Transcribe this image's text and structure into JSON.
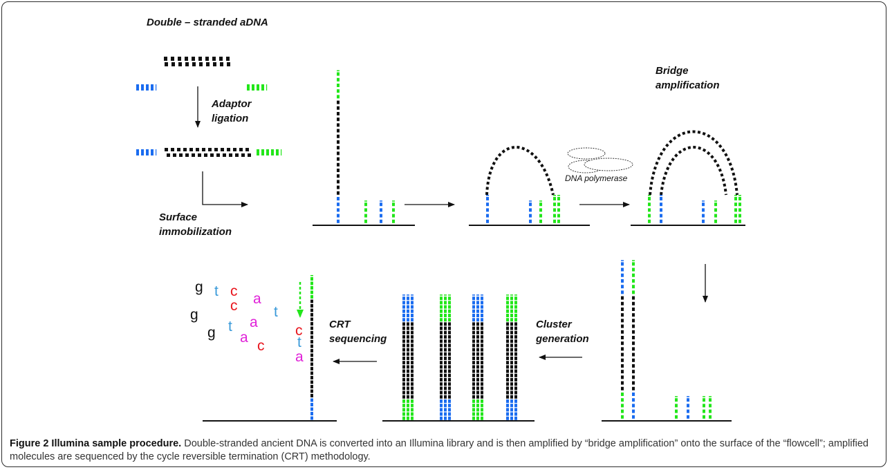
{
  "labels": {
    "double_stranded": "Double – stranded aDNA",
    "adaptor_1": "Adaptor",
    "adaptor_2": "ligation",
    "surface_1": "Surface",
    "surface_2": "immobilization",
    "bridge_1": "Bridge",
    "bridge_2": "amplification",
    "polymerase": "DNA polymerase",
    "cluster_1": "Cluster",
    "cluster_2": "generation",
    "crt_1": "CRT",
    "crt_2": "sequencing"
  },
  "bases": [
    {
      "ch": "g",
      "color": "#111111"
    },
    {
      "ch": "t",
      "color": "#3a9ad9"
    },
    {
      "ch": "c",
      "color": "#e8141c"
    },
    {
      "ch": "a",
      "color": "#e020d8"
    },
    {
      "ch": "c",
      "color": "#e8141c"
    },
    {
      "ch": "t",
      "color": "#3a9ad9"
    },
    {
      "ch": "g",
      "color": "#111111"
    },
    {
      "ch": "t",
      "color": "#3a9ad9"
    },
    {
      "ch": "a",
      "color": "#e020d8"
    },
    {
      "ch": "g",
      "color": "#111111"
    },
    {
      "ch": "a",
      "color": "#e020d8"
    },
    {
      "ch": "c",
      "color": "#e8141c"
    },
    {
      "ch": "c",
      "color": "#e8141c"
    },
    {
      "ch": "t",
      "color": "#3a9ad9"
    },
    {
      "ch": "a",
      "color": "#e020d8"
    }
  ],
  "caption": {
    "title": "Figure 2 Illumina sample procedure.",
    "text": "Double-stranded ancient DNA is converted into an Illumina library and is then amplified by “bridge amplification” onto the surface of the “flowcell”; amplified molecules are sequenced by the cycle reversible termination (CRT) methodology."
  },
  "colors": {
    "black": "#111111",
    "blue": "#1a6cf0",
    "green": "#22e61a",
    "red": "#e8141c",
    "magenta": "#e020d8",
    "cyan": "#3a9ad9"
  }
}
